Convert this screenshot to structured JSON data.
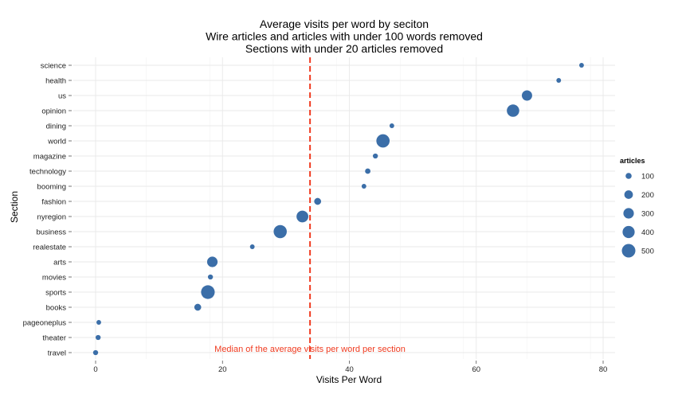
{
  "chart_data": {
    "type": "scatter",
    "title_lines": [
      "Average visits per word by seciton",
      "Wire articles and articles with under 100 words removed",
      "Sections with under 20 articles removed"
    ],
    "xlabel": "Visits Per Word",
    "ylabel": "Section",
    "xlim": [
      -2,
      80
    ],
    "xticks": [
      0,
      20,
      40,
      60,
      80
    ],
    "grid": true,
    "color": "#3b6ea8",
    "categories": [
      "science",
      "health",
      "us",
      "opinion",
      "dining",
      "world",
      "magazine",
      "technology",
      "booming",
      "fashion",
      "nyregion",
      "business",
      "realestate",
      "arts",
      "movies",
      "sports",
      "books",
      "pageoneplus",
      "theater",
      "travel"
    ],
    "points": [
      {
        "section": "science",
        "x": 76.6,
        "articles": 60
      },
      {
        "section": "health",
        "x": 73.0,
        "articles": 60
      },
      {
        "section": "us",
        "x": 68.0,
        "articles": 290
      },
      {
        "section": "opinion",
        "x": 65.8,
        "articles": 420
      },
      {
        "section": "dining",
        "x": 46.7,
        "articles": 60
      },
      {
        "section": "world",
        "x": 45.3,
        "articles": 480
      },
      {
        "section": "magazine",
        "x": 44.1,
        "articles": 70
      },
      {
        "section": "technology",
        "x": 42.9,
        "articles": 80
      },
      {
        "section": "booming",
        "x": 42.3,
        "articles": 60
      },
      {
        "section": "fashion",
        "x": 35.0,
        "articles": 130
      },
      {
        "section": "nyregion",
        "x": 32.6,
        "articles": 380
      },
      {
        "section": "business",
        "x": 29.1,
        "articles": 470
      },
      {
        "section": "realestate",
        "x": 24.7,
        "articles": 60
      },
      {
        "section": "arts",
        "x": 18.4,
        "articles": 300
      },
      {
        "section": "movies",
        "x": 18.1,
        "articles": 70
      },
      {
        "section": "sports",
        "x": 17.7,
        "articles": 510
      },
      {
        "section": "books",
        "x": 16.1,
        "articles": 130
      },
      {
        "section": "pageoneplus",
        "x": 0.5,
        "articles": 60
      },
      {
        "section": "theater",
        "x": 0.4,
        "articles": 70
      },
      {
        "section": "travel",
        "x": 0.0,
        "articles": 70
      }
    ],
    "median": {
      "x": 33.8,
      "label": "Median of the average visits per word per section",
      "color": "#f03b20"
    },
    "legend": {
      "title": "articles",
      "placement": "right",
      "entries": [
        {
          "label": "100",
          "value": 100
        },
        {
          "label": "200",
          "value": 200
        },
        {
          "label": "300",
          "value": 300
        },
        {
          "label": "400",
          "value": 400
        },
        {
          "label": "500",
          "value": 500
        }
      ]
    }
  }
}
